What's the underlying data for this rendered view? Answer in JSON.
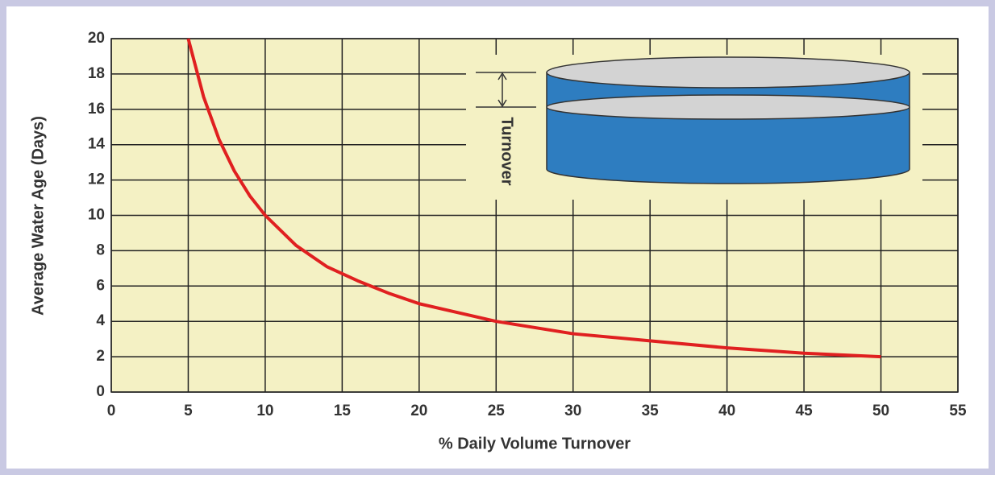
{
  "chart_data": {
    "type": "line",
    "xlabel": "% Daily Volume Turnover",
    "ylabel": "Average Water Age (Days)",
    "annotation": "Turnover",
    "x": [
      5,
      6,
      7,
      8,
      9,
      10,
      12,
      14,
      15,
      16,
      18,
      20,
      25,
      30,
      35,
      40,
      45,
      50
    ],
    "series": [
      {
        "color": "#e02020",
        "values": [
          20,
          16.7,
          14.3,
          12.5,
          11.1,
          10,
          8.3,
          7.1,
          6.7,
          6.3,
          5.6,
          5,
          4,
          3.3,
          2.9,
          2.5,
          2.2,
          2
        ]
      }
    ],
    "xlim": [
      0,
      55
    ],
    "xticks": [
      0,
      5,
      10,
      15,
      20,
      25,
      30,
      35,
      40,
      45,
      50,
      55
    ],
    "ylim": [
      0,
      20
    ],
    "yticks": [
      0,
      2,
      4,
      6,
      8,
      10,
      12,
      14,
      16,
      18,
      20
    ],
    "grid": true
  }
}
